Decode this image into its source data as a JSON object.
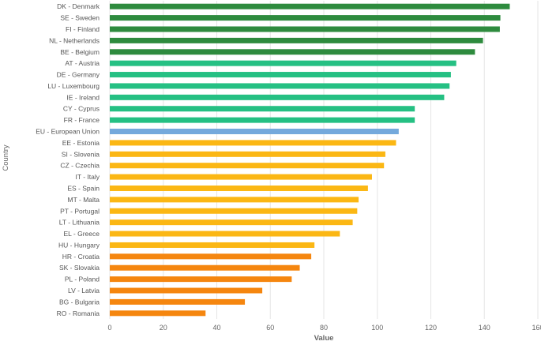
{
  "chart_data": {
    "type": "bar",
    "orientation": "horizontal",
    "title": "",
    "xlabel": "Value",
    "ylabel": "Country",
    "xlim": [
      0,
      160
    ],
    "x_ticks": [
      0,
      20,
      40,
      60,
      80,
      100,
      120,
      140,
      160
    ],
    "grid": true,
    "legend": "none",
    "colors": {
      "dark_green": "#2e8b3e",
      "green": "#25c083",
      "blue": "#74a9dc",
      "yellow": "#fbb714",
      "orange": "#f5860f"
    },
    "categories": [
      "DK - Denmark",
      "SE - Sweden",
      "FI - Finland",
      "NL - Netherlands",
      "BE - Belgium",
      "AT - Austria",
      "DE - Germany",
      "LU - Luxembourg",
      "IE - Ireland",
      "CY - Cyprus",
      "FR - France",
      "EU - European Union",
      "EE - Estonia",
      "SI - Slovenia",
      "CZ - Czechia",
      "IT - Italy",
      "ES - Spain",
      "MT - Malta",
      "PT - Portugal",
      "LT - Lithuania",
      "EL - Greece",
      "HU - Hungary",
      "HR - Croatia",
      "SK - Slovakia",
      "PL - Poland",
      "LV - Latvia",
      "BG - Bulgaria",
      "RO - Romania"
    ],
    "values": [
      149.5,
      146,
      145.8,
      139.5,
      136.5,
      129.5,
      127.5,
      127,
      125,
      114,
      114,
      108,
      107,
      103,
      102.5,
      98,
      96.5,
      93,
      92.5,
      90.8,
      86,
      76.5,
      75.3,
      71,
      68,
      57,
      50.5,
      35.8
    ],
    "color_groups": [
      "dark_green",
      "dark_green",
      "dark_green",
      "dark_green",
      "dark_green",
      "green",
      "green",
      "green",
      "green",
      "green",
      "green",
      "blue",
      "yellow",
      "yellow",
      "yellow",
      "yellow",
      "yellow",
      "yellow",
      "yellow",
      "yellow",
      "yellow",
      "yellow",
      "orange",
      "orange",
      "orange",
      "orange",
      "orange",
      "orange"
    ]
  }
}
